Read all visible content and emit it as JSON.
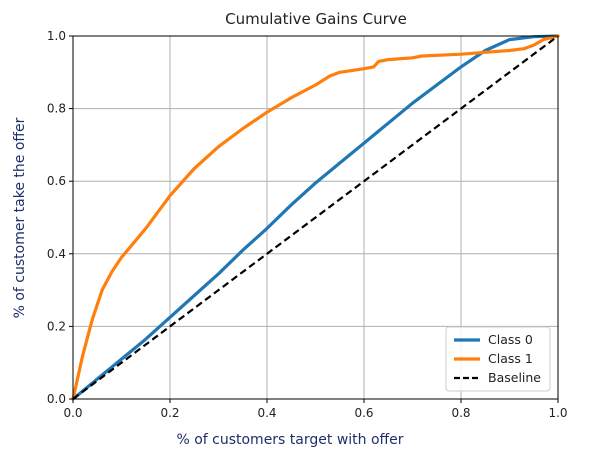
{
  "chart_data": {
    "type": "line",
    "title": "Cumulative Gains Curve",
    "xlabel": "% of customers target with offer",
    "ylabel": "% of customer take the offer",
    "xlim": [
      0,
      1
    ],
    "ylim": [
      0,
      1
    ],
    "x_ticks": [
      "0.0",
      "0.2",
      "0.4",
      "0.6",
      "0.8",
      "1.0"
    ],
    "y_ticks": [
      "0.0",
      "0.2",
      "0.4",
      "0.6",
      "0.8",
      "1.0"
    ],
    "grid": true,
    "legend_position": "bottom-right",
    "label_color": "#1f2f6b",
    "series": [
      {
        "name": "Class 0",
        "color": "#1f77b4",
        "style": "solid",
        "x": [
          0,
          0.05,
          0.1,
          0.15,
          0.2,
          0.25,
          0.3,
          0.35,
          0.4,
          0.45,
          0.5,
          0.55,
          0.6,
          0.65,
          0.7,
          0.75,
          0.8,
          0.85,
          0.9,
          0.95,
          1.0
        ],
        "y": [
          0,
          0.055,
          0.11,
          0.165,
          0.225,
          0.285,
          0.345,
          0.41,
          0.47,
          0.535,
          0.595,
          0.65,
          0.705,
          0.76,
          0.815,
          0.865,
          0.915,
          0.96,
          0.99,
          0.998,
          1.0
        ]
      },
      {
        "name": "Class 1",
        "color": "#ff7f0e",
        "style": "solid",
        "x": [
          0,
          0.02,
          0.04,
          0.06,
          0.08,
          0.1,
          0.15,
          0.2,
          0.25,
          0.3,
          0.35,
          0.4,
          0.45,
          0.5,
          0.53,
          0.55,
          0.6,
          0.62,
          0.63,
          0.65,
          0.7,
          0.72,
          0.8,
          0.85,
          0.9,
          0.93,
          0.95,
          0.97,
          1.0
        ],
        "y": [
          0,
          0.12,
          0.22,
          0.3,
          0.35,
          0.39,
          0.47,
          0.56,
          0.635,
          0.695,
          0.745,
          0.79,
          0.83,
          0.865,
          0.89,
          0.9,
          0.91,
          0.915,
          0.93,
          0.935,
          0.94,
          0.945,
          0.95,
          0.955,
          0.96,
          0.965,
          0.975,
          0.99,
          1.0
        ]
      },
      {
        "name": "Baseline",
        "color": "#000000",
        "style": "dashed",
        "x": [
          0,
          1
        ],
        "y": [
          0,
          1
        ]
      }
    ]
  }
}
